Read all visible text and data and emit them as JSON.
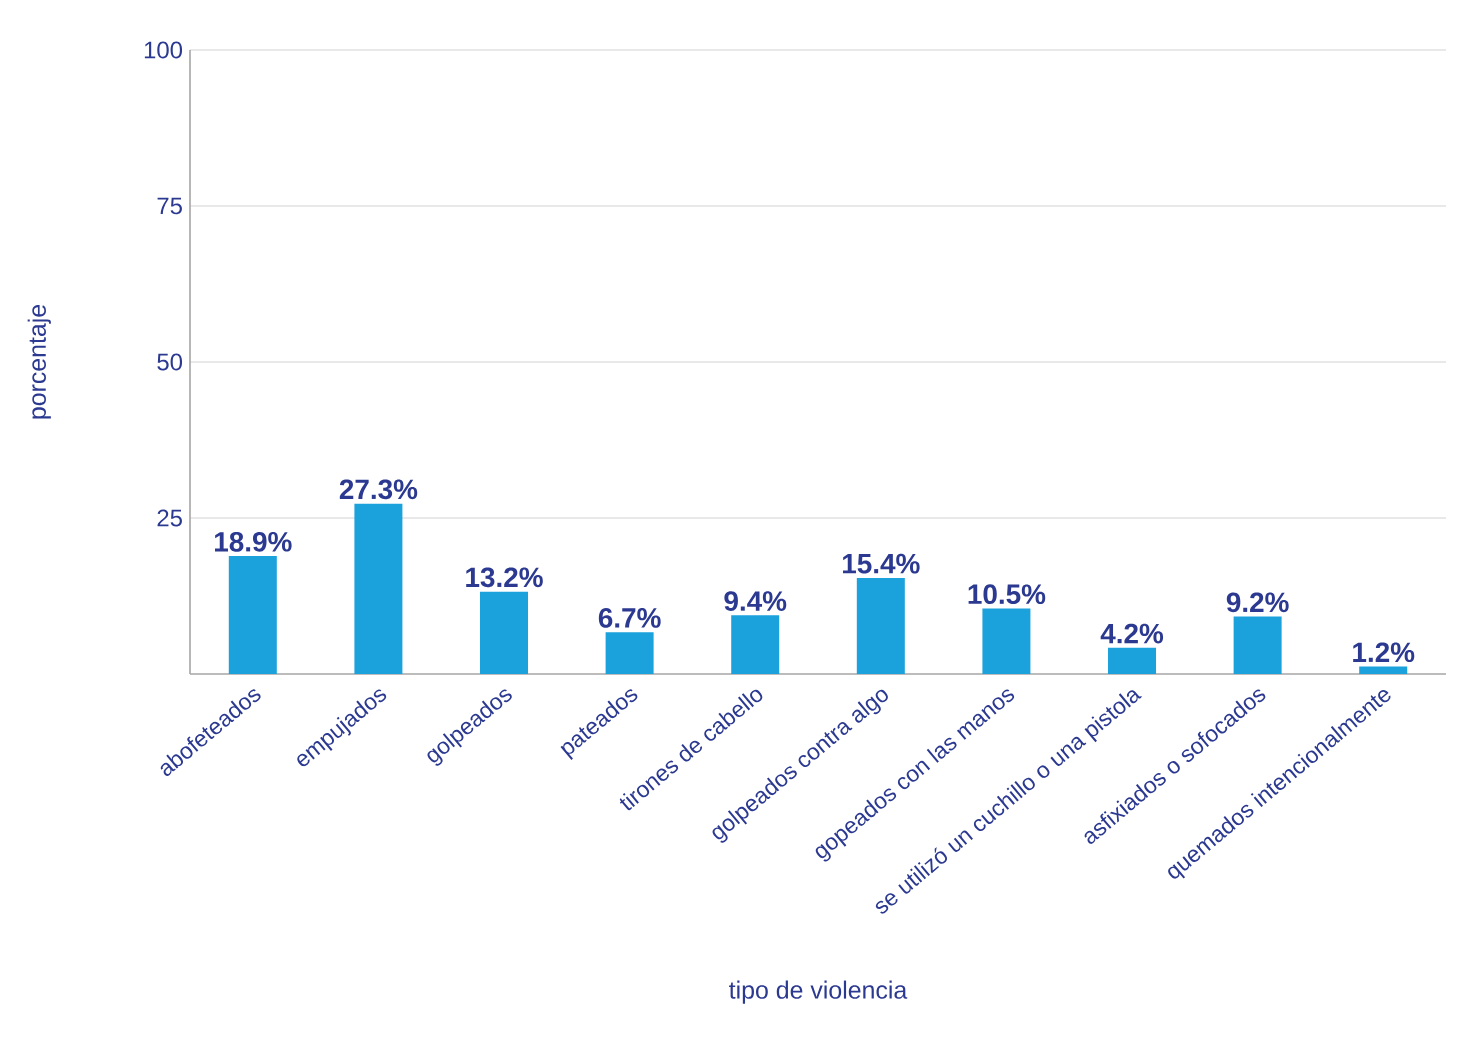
{
  "chart_data": {
    "type": "bar",
    "xlabel": "tipo de violencia",
    "ylabel": "porcentaje",
    "categories": [
      "abofeteados",
      "empujados",
      "golpeados",
      "pateados",
      "tirones de cabello",
      "golpeados contra algo",
      "gopeados con las manos",
      "se utilizó un cuchillo o una pistola",
      "asfixiados o sofocados",
      "quemados intencionalmente"
    ],
    "values": [
      18.9,
      27.3,
      13.2,
      6.7,
      9.4,
      15.4,
      10.5,
      4.2,
      9.2,
      1.2
    ],
    "value_labels": [
      "18.9%",
      "27.3%",
      "13.2%",
      "6.7%",
      "9.4%",
      "15.4%",
      "10.5%",
      "4.2%",
      "9.2%",
      "1.2%"
    ],
    "color": "#1ba1dc",
    "ylim": [
      0,
      100
    ],
    "yticks": [
      25,
      50,
      75,
      100
    ],
    "grid": "y"
  }
}
